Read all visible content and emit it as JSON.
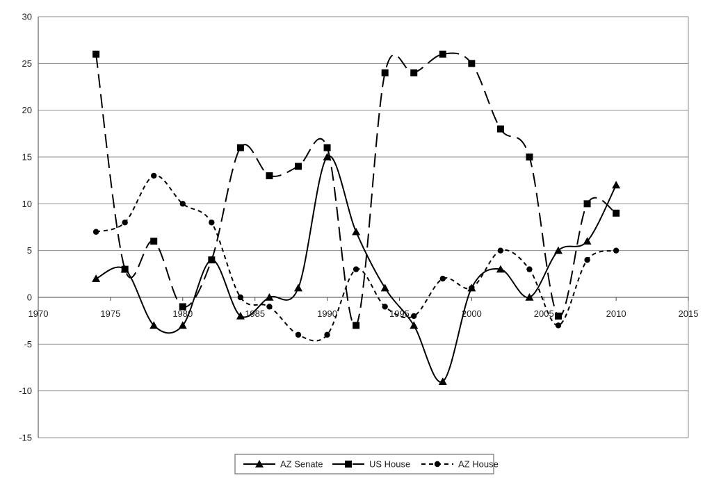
{
  "chart_data": {
    "type": "line",
    "title": "",
    "xlabel": "",
    "ylabel": "",
    "xlim": [
      1970,
      2015
    ],
    "ylim": [
      -15,
      30
    ],
    "x_ticks": [
      1970,
      1975,
      1980,
      1985,
      1990,
      1995,
      2000,
      2005,
      2010,
      2015
    ],
    "y_ticks": [
      -15,
      -10,
      -5,
      0,
      5,
      10,
      15,
      20,
      25,
      30
    ],
    "x_tick_labels": [
      "1970",
      "1975",
      "1980",
      "1985",
      "1990",
      "1995",
      "2000",
      "2005",
      "2010",
      "2015"
    ],
    "y_tick_labels": [
      "-15",
      "-10",
      "-5",
      "0",
      "5",
      "10",
      "15",
      "20",
      "25",
      "30"
    ],
    "grid": "horizontal",
    "legend_position": "bottom",
    "x": [
      1974,
      1976,
      1978,
      1980,
      1982,
      1984,
      1986,
      1988,
      1990,
      1992,
      1994,
      1996,
      1998,
      2000,
      2002,
      2004,
      2006,
      2008,
      2010
    ],
    "series": [
      {
        "name": "AZ Senate",
        "marker": "triangle",
        "dash": "solid",
        "color": "#000000",
        "values": [
          2,
          3,
          -3,
          -3,
          4,
          -2,
          0,
          1,
          15,
          7,
          1,
          -3,
          -9,
          1,
          3,
          0,
          5,
          6,
          12
        ]
      },
      {
        "name": "US House",
        "marker": "square",
        "dash": "long-dash",
        "color": "#000000",
        "values": [
          26,
          3,
          6,
          -1,
          4,
          16,
          13,
          14,
          16,
          -3,
          24,
          24,
          26,
          25,
          18,
          15,
          -2,
          10,
          9
        ]
      },
      {
        "name": "AZ House",
        "marker": "circle",
        "dash": "short-dash",
        "color": "#000000",
        "values": [
          7,
          8,
          13,
          10,
          8,
          0,
          -1,
          -4,
          -4,
          3,
          -1,
          -2,
          2,
          1,
          5,
          3,
          -3,
          4,
          5
        ]
      }
    ]
  }
}
